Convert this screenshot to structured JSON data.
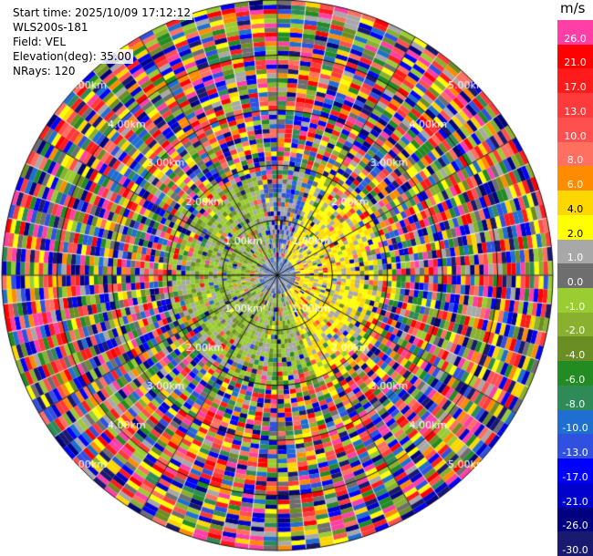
{
  "header": {
    "start_time": "Start time: 2025/10/09 17:12:12",
    "instrument": "WLS200s-181",
    "field": "Field: VEL",
    "elevation": "Elevation(deg): 35.00",
    "nrays": "NRays: 120"
  },
  "colorbar": {
    "unit": "m/s",
    "levels": [
      {
        "label": "26.0",
        "color": "#ff3fa6"
      },
      {
        "label": "21.0",
        "color": "#ff0000"
      },
      {
        "label": "17.0",
        "color": "#ff1b1b"
      },
      {
        "label": "13.0",
        "color": "#ff3a3a"
      },
      {
        "label": "10.0",
        "color": "#ff5050"
      },
      {
        "label": "8.0",
        "color": "#ff7060"
      },
      {
        "label": "6.0",
        "color": "#ff8c00"
      },
      {
        "label": "4.0",
        "color": "#ffd700"
      },
      {
        "label": "2.0",
        "color": "#ffff00"
      },
      {
        "label": "1.0",
        "color": "#a8a8a8"
      },
      {
        "label": "0.0",
        "color": "#6e6e6e"
      },
      {
        "label": "-1.0",
        "color": "#9acd32"
      },
      {
        "label": "-2.0",
        "color": "#8ab030"
      },
      {
        "label": "-4.0",
        "color": "#6b8e23"
      },
      {
        "label": "-6.0",
        "color": "#228b22"
      },
      {
        "label": "-8.0",
        "color": "#2e8b57"
      },
      {
        "label": "-10.0",
        "color": "#1e6fd0"
      },
      {
        "label": "-13.0",
        "color": "#3050e0"
      },
      {
        "label": "-17.0",
        "color": "#0000ff"
      },
      {
        "label": "-21.0",
        "color": "#0000cd"
      },
      {
        "label": "-26.0",
        "color": "#000080"
      },
      {
        "label": "-30.0",
        "color": "#191970"
      }
    ]
  },
  "chart_data": {
    "type": "heatmap",
    "projection": "polar (PPI scan)",
    "field": "VEL",
    "units": "m/s",
    "elevation_deg": 35.0,
    "n_rays": 120,
    "range_rings_km": [
      "1.00km",
      "2.00km",
      "3.00km",
      "4.00km",
      "5.00km"
    ],
    "max_range_km": 5.0,
    "color_scale_ticks": [
      26.0,
      21.0,
      17.0,
      13.0,
      10.0,
      8.0,
      6.0,
      4.0,
      2.0,
      1.0,
      0.0,
      -1.0,
      -2.0,
      -4.0,
      -6.0,
      -8.0,
      -10.0,
      -13.0,
      -17.0,
      -21.0,
      -26.0,
      -30.0
    ],
    "pattern": "Near-range (< 2 km) shows coherent velocities: yellow (positive, ~2–4 m/s) to the east, green (negative, ~-1 to -2 m/s) to the west/south, grey (~0) near center. Beyond ~2 km values are noisy across the full color scale."
  }
}
